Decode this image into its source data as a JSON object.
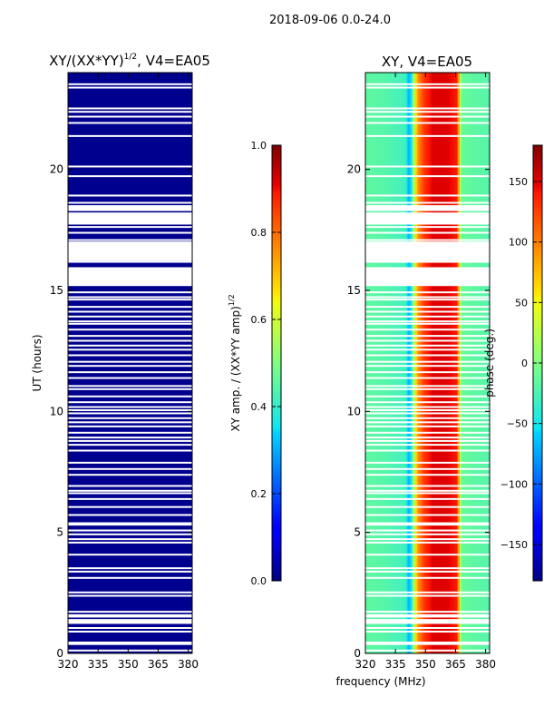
{
  "suptitle": "2018-09-06 0.0-24.0",
  "shared_xlabel": "frequency (MHz)",
  "colormap_stops": [
    [
      "0.00",
      "#00007f"
    ],
    [
      "0.11",
      "#0000ff"
    ],
    [
      "0.125",
      "#0000ff"
    ],
    [
      "0.34",
      "#00d4ff"
    ],
    [
      "0.35",
      "#0de5f2"
    ],
    [
      "0.50",
      "#80ff80"
    ],
    [
      "0.64",
      "#f2fc0d"
    ],
    [
      "0.66",
      "#ffe600"
    ],
    [
      "0.89",
      "#ff1a00"
    ],
    [
      "0.91",
      "#e60000"
    ],
    [
      "1.00",
      "#7f0000"
    ]
  ],
  "chart_data": [
    {
      "type": "heatmap",
      "title": "XY/(XX*YY)",
      "title_sup": "1/2",
      "title_suffix": ", V4=EA05",
      "xlabel": "",
      "ylabel": "UT (hours)",
      "xlim": [
        320,
        382
      ],
      "ylim": [
        0,
        24
      ],
      "xticks": [
        320,
        335,
        350,
        365,
        380
      ],
      "yticks": [
        0,
        5,
        10,
        15,
        20
      ],
      "fill_color": "#00008f",
      "flagged_hours": [
        0.12,
        0.45,
        0.9,
        1.05,
        1.52,
        1.58,
        1.72,
        2.38,
        2.52,
        3.12,
        3.38,
        3.52,
        4.08,
        4.58,
        4.72,
        4.92,
        5.08,
        5.32,
        5.38,
        5.72,
        6.05,
        6.38,
        6.62,
        6.72,
        6.92,
        7.38,
        7.62,
        7.88,
        8.38,
        8.62,
        8.78,
        8.92,
        9.12,
        9.38,
        9.55,
        9.72,
        9.92,
        10.05,
        10.18,
        10.38,
        10.62,
        10.92,
        11.05,
        11.38,
        11.62,
        11.88,
        12.05,
        12.32,
        12.55,
        12.72,
        12.92,
        13.12,
        13.38,
        13.62,
        13.72,
        13.92,
        14.12,
        14.32,
        14.62,
        14.72,
        14.92,
        15.92,
        16.18,
        17.08,
        17.38,
        17.62,
        18.62,
        18.92,
        19.72,
        20.12,
        21.38,
        21.92,
        22.18,
        22.38,
        22.52,
        23.38,
        23.52
      ],
      "flagged_blocks": [
        [
          15.18,
          15.92
        ],
        [
          16.22,
          17.02
        ],
        [
          17.72,
          18.22
        ],
        [
          18.28,
          18.52
        ],
        [
          0.35,
          0.42
        ],
        [
          1.22,
          1.42
        ]
      ],
      "colorbar": {
        "label": "XY amp. / (XX*YY amp)",
        "label_sup": "1/2",
        "min": 0.0,
        "max": 1.0,
        "ticks": [
          "0.0",
          "0.2",
          "0.4",
          "0.6",
          "0.8",
          "1.0"
        ]
      }
    },
    {
      "type": "heatmap",
      "title": "XY, V4=EA05",
      "xlabel": "frequency (MHz)",
      "ylabel": "",
      "xlim": [
        320,
        382
      ],
      "ylim": [
        0,
        24
      ],
      "xticks": [
        320,
        335,
        350,
        365,
        380
      ],
      "yticks": [
        0,
        5,
        10,
        15,
        20
      ],
      "phase_profile": {
        "freq_mhz": [
          320,
          330,
          340,
          342,
          346,
          350,
          354,
          360,
          366,
          367,
          368,
          372,
          382
        ],
        "phase_deg": [
          -15,
          -20,
          -30,
          -80,
          90,
          135,
          150,
          150,
          140,
          40,
          -10,
          -15,
          -20
        ]
      },
      "colorbar": {
        "label": "phase (deg.)",
        "min": -180,
        "max": 180,
        "ticks": [
          "−150",
          "−100",
          "−50",
          "0",
          "50",
          "100",
          "150"
        ]
      }
    }
  ]
}
